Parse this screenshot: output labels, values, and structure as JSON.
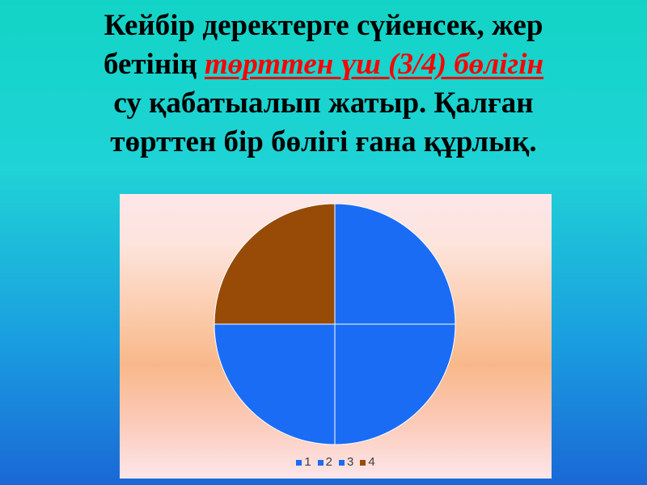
{
  "title": {
    "line1": "Кейбір деректерге сүйенсек, жер",
    "line2_prefix": "бетінің ",
    "line2_highlight": "төрттен үш (3/4) бөлігін",
    "line3": "су қабатыалып жатыр. Қалған",
    "line4": "төрттен бір бөлігі ғана құрлық."
  },
  "chart_data": {
    "type": "pie",
    "categories": [
      "1",
      "2",
      "3",
      "4"
    ],
    "values": [
      25,
      25,
      25,
      25
    ],
    "colors": [
      "#1a6cf5",
      "#1a6cf5",
      "#1a6cf5",
      "#974b07"
    ],
    "start_angle": "12 o'clock, clockwise",
    "legend_position": "bottom"
  }
}
